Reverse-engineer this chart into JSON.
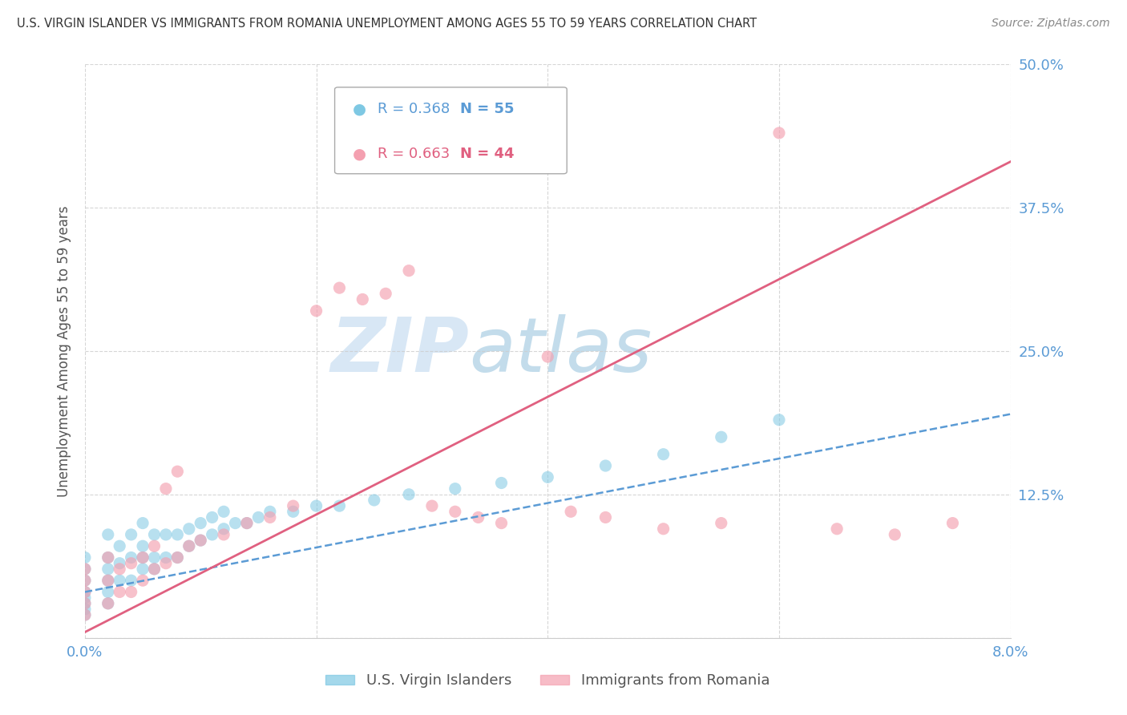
{
  "title": "U.S. VIRGIN ISLANDER VS IMMIGRANTS FROM ROMANIA UNEMPLOYMENT AMONG AGES 55 TO 59 YEARS CORRELATION CHART",
  "source": "Source: ZipAtlas.com",
  "ylabel": "Unemployment Among Ages 55 to 59 years",
  "xlim": [
    0.0,
    0.08
  ],
  "ylim": [
    0.0,
    0.5
  ],
  "yticks": [
    0.0,
    0.125,
    0.25,
    0.375,
    0.5
  ],
  "ytick_labels": [
    "",
    "12.5%",
    "25.0%",
    "37.5%",
    "50.0%"
  ],
  "xticks": [
    0.0,
    0.02,
    0.04,
    0.06,
    0.08
  ],
  "xtick_labels": [
    "0.0%",
    "",
    "",
    "",
    "8.0%"
  ],
  "series1_label": "U.S. Virgin Islanders",
  "series2_label": "Immigrants from Romania",
  "series1_color": "#7ec8e3",
  "series2_color": "#f4a0b0",
  "trendline1_color": "#5b9bd5",
  "trendline2_color": "#e06080",
  "axis_color": "#5b9bd5",
  "grid_color": "#cccccc",
  "watermark_zip": "ZIP",
  "watermark_atlas": "atlas",
  "legend1_R": "R = 0.368",
  "legend1_N": "N = 55",
  "legend2_R": "R = 0.663",
  "legend2_N": "N = 44",
  "series1_x": [
    0.0,
    0.0,
    0.0,
    0.0,
    0.0,
    0.0,
    0.0,
    0.0,
    0.002,
    0.002,
    0.002,
    0.002,
    0.002,
    0.002,
    0.003,
    0.003,
    0.003,
    0.004,
    0.004,
    0.004,
    0.005,
    0.005,
    0.005,
    0.005,
    0.006,
    0.006,
    0.006,
    0.007,
    0.007,
    0.008,
    0.008,
    0.009,
    0.009,
    0.01,
    0.01,
    0.011,
    0.011,
    0.012,
    0.012,
    0.013,
    0.014,
    0.015,
    0.016,
    0.018,
    0.02,
    0.022,
    0.025,
    0.028,
    0.032,
    0.036,
    0.04,
    0.045,
    0.05,
    0.055,
    0.06
  ],
  "series1_y": [
    0.02,
    0.025,
    0.03,
    0.035,
    0.04,
    0.05,
    0.06,
    0.07,
    0.03,
    0.04,
    0.05,
    0.06,
    0.07,
    0.09,
    0.05,
    0.065,
    0.08,
    0.05,
    0.07,
    0.09,
    0.06,
    0.07,
    0.08,
    0.1,
    0.06,
    0.07,
    0.09,
    0.07,
    0.09,
    0.07,
    0.09,
    0.08,
    0.095,
    0.085,
    0.1,
    0.09,
    0.105,
    0.095,
    0.11,
    0.1,
    0.1,
    0.105,
    0.11,
    0.11,
    0.115,
    0.115,
    0.12,
    0.125,
    0.13,
    0.135,
    0.14,
    0.15,
    0.16,
    0.175,
    0.19
  ],
  "series2_x": [
    0.0,
    0.0,
    0.0,
    0.0,
    0.0,
    0.002,
    0.002,
    0.002,
    0.003,
    0.003,
    0.004,
    0.004,
    0.005,
    0.005,
    0.006,
    0.006,
    0.007,
    0.007,
    0.008,
    0.008,
    0.009,
    0.01,
    0.012,
    0.014,
    0.016,
    0.018,
    0.02,
    0.022,
    0.024,
    0.026,
    0.028,
    0.03,
    0.032,
    0.034,
    0.036,
    0.04,
    0.042,
    0.045,
    0.05,
    0.055,
    0.06,
    0.065,
    0.07,
    0.075
  ],
  "series2_y": [
    0.02,
    0.03,
    0.04,
    0.05,
    0.06,
    0.03,
    0.05,
    0.07,
    0.04,
    0.06,
    0.04,
    0.065,
    0.05,
    0.07,
    0.06,
    0.08,
    0.065,
    0.13,
    0.07,
    0.145,
    0.08,
    0.085,
    0.09,
    0.1,
    0.105,
    0.115,
    0.285,
    0.305,
    0.295,
    0.3,
    0.32,
    0.115,
    0.11,
    0.105,
    0.1,
    0.245,
    0.11,
    0.105,
    0.095,
    0.1,
    0.44,
    0.095,
    0.09,
    0.1
  ],
  "trendline1_x": [
    0.0,
    0.08
  ],
  "trendline1_y": [
    0.04,
    0.195
  ],
  "trendline2_x": [
    0.0,
    0.08
  ],
  "trendline2_y": [
    0.005,
    0.415
  ]
}
